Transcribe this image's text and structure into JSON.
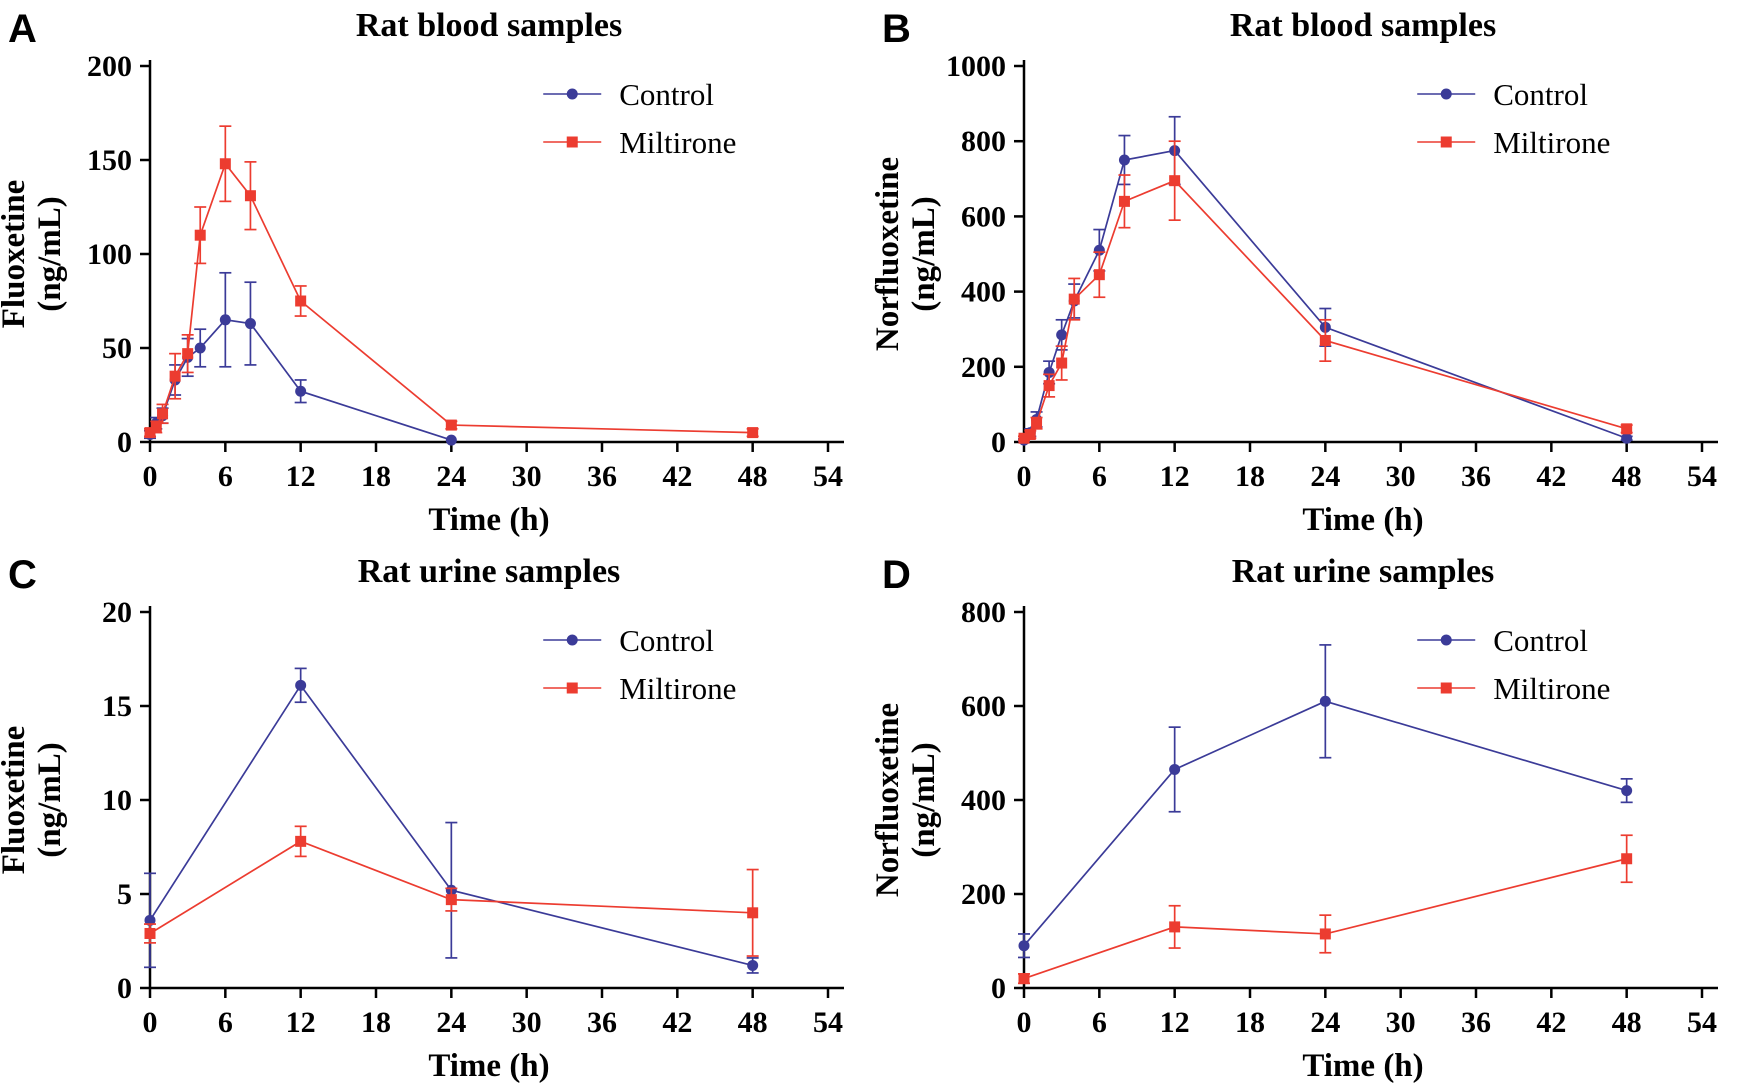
{
  "figure": {
    "background": "#ffffff",
    "axis_color": "#000000",
    "text_color": "#111111"
  },
  "legend": {
    "items": [
      {
        "label": "Control",
        "color": "#3b3b98",
        "marker": "circle"
      },
      {
        "label": "Miltirone",
        "color": "#ec3c30",
        "marker": "square"
      }
    ]
  },
  "chart_data": [
    {
      "panel": "A",
      "type": "line",
      "title": "Rat blood samples",
      "xlabel": "Time (h)",
      "ylabel_lines": [
        "Fluoxetine",
        "(ng/mL)"
      ],
      "xlim": [
        0,
        54
      ],
      "xticks": [
        0,
        6,
        12,
        18,
        24,
        30,
        36,
        42,
        48,
        54
      ],
      "ylim": [
        0,
        200
      ],
      "yticks": [
        0,
        50,
        100,
        150,
        200
      ],
      "legend_position": "top-right",
      "grid": false,
      "series": [
        {
          "name": "Control",
          "color": "#3b3b98",
          "marker": "circle",
          "x": [
            0,
            0.5,
            1,
            2,
            3,
            4,
            6,
            8,
            12,
            24
          ],
          "y": [
            4,
            10,
            14,
            33,
            45,
            50,
            65,
            63,
            27,
            1
          ],
          "err": [
            2,
            3,
            4,
            8,
            10,
            10,
            25,
            22,
            6,
            0
          ]
        },
        {
          "name": "Miltirone",
          "color": "#ec3c30",
          "marker": "square",
          "x": [
            0,
            0.5,
            1,
            2,
            3,
            4,
            6,
            8,
            12,
            24,
            48
          ],
          "y": [
            5,
            8,
            15,
            35,
            47,
            110,
            148,
            131,
            75,
            9,
            5
          ],
          "err": [
            2,
            3,
            5,
            12,
            10,
            15,
            20,
            18,
            8,
            2,
            2
          ]
        }
      ]
    },
    {
      "panel": "B",
      "type": "line",
      "title": "Rat blood samples",
      "xlabel": "Time (h)",
      "ylabel_lines": [
        "Norfluoxetine",
        "(ng/mL)"
      ],
      "xlim": [
        0,
        54
      ],
      "xticks": [
        0,
        6,
        12,
        18,
        24,
        30,
        36,
        42,
        48,
        54
      ],
      "ylim": [
        0,
        1000
      ],
      "yticks": [
        0,
        200,
        400,
        600,
        800,
        1000
      ],
      "legend_position": "top-right",
      "grid": false,
      "series": [
        {
          "name": "Control",
          "color": "#3b3b98",
          "marker": "circle",
          "x": [
            0,
            0.5,
            1,
            2,
            3,
            4,
            6,
            8,
            12,
            24,
            48
          ],
          "y": [
            5,
            25,
            60,
            185,
            285,
            375,
            510,
            750,
            775,
            305,
            10
          ],
          "err": [
            3,
            10,
            20,
            30,
            40,
            45,
            55,
            65,
            90,
            50,
            5
          ]
        },
        {
          "name": "Miltirone",
          "color": "#ec3c30",
          "marker": "square",
          "x": [
            0,
            0.5,
            1,
            2,
            3,
            4,
            6,
            8,
            12,
            24,
            48
          ],
          "y": [
            10,
            20,
            50,
            150,
            210,
            380,
            445,
            640,
            695,
            270,
            35
          ],
          "err": [
            5,
            10,
            15,
            30,
            45,
            55,
            60,
            70,
            105,
            55,
            10
          ]
        }
      ]
    },
    {
      "panel": "C",
      "type": "line",
      "title": "Rat urine samples",
      "xlabel": "Time (h)",
      "ylabel_lines": [
        "Fluoxetine",
        "(ng/mL)"
      ],
      "xlim": [
        0,
        54
      ],
      "xticks": [
        0,
        6,
        12,
        18,
        24,
        30,
        36,
        42,
        48,
        54
      ],
      "ylim": [
        0,
        20
      ],
      "yticks": [
        0,
        5,
        10,
        15,
        20
      ],
      "legend_position": "top-right",
      "grid": false,
      "series": [
        {
          "name": "Control",
          "color": "#3b3b98",
          "marker": "circle",
          "x": [
            0,
            12,
            24,
            48
          ],
          "y": [
            3.6,
            16.1,
            5.2,
            1.2
          ],
          "err": [
            2.5,
            0.9,
            3.6,
            0.4
          ]
        },
        {
          "name": "Miltirone",
          "color": "#ec3c30",
          "marker": "square",
          "x": [
            0,
            12,
            24,
            48
          ],
          "y": [
            2.9,
            7.8,
            4.7,
            4.0
          ],
          "err": [
            0.5,
            0.8,
            0.6,
            2.3
          ]
        }
      ]
    },
    {
      "panel": "D",
      "type": "line",
      "title": "Rat urine samples",
      "xlabel": "Time (h)",
      "ylabel_lines": [
        "Norfluoxetine",
        "(ng/mL)"
      ],
      "xlim": [
        0,
        54
      ],
      "xticks": [
        0,
        6,
        12,
        18,
        24,
        30,
        36,
        42,
        48,
        54
      ],
      "ylim": [
        0,
        800
      ],
      "yticks": [
        0,
        200,
        400,
        600,
        800
      ],
      "legend_position": "top-right",
      "grid": false,
      "series": [
        {
          "name": "Control",
          "color": "#3b3b98",
          "marker": "circle",
          "x": [
            0,
            12,
            24,
            48
          ],
          "y": [
            90,
            465,
            610,
            420
          ],
          "err": [
            25,
            90,
            120,
            25
          ]
        },
        {
          "name": "Miltirone",
          "color": "#ec3c30",
          "marker": "square",
          "x": [
            0,
            12,
            24,
            48
          ],
          "y": [
            20,
            130,
            115,
            275
          ],
          "err": [
            10,
            45,
            40,
            50
          ]
        }
      ]
    }
  ]
}
